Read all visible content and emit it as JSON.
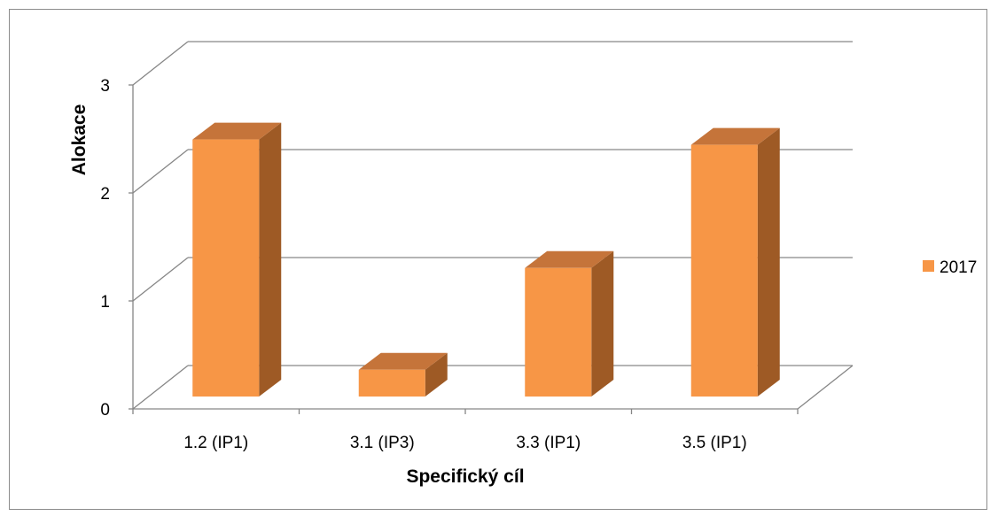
{
  "chart_data": {
    "type": "bar",
    "categories": [
      "1.2 (IP1)",
      "3.1 (IP3)",
      "3.3 (IP1)",
      "3.5 (IP1)"
    ],
    "series": [
      {
        "name": "2017",
        "values": [
          2.4,
          0.25,
          1.2,
          2.35
        ]
      }
    ],
    "xlabel": "Specifický cíl",
    "ylabel": "Alokace",
    "ylim": [
      0,
      3
    ],
    "yticks": [
      0,
      1,
      2,
      3
    ],
    "grid": true,
    "legend_position": "right",
    "style": "3d-column",
    "colors": {
      "bar_front": "#F79646",
      "bar_side": "#9E5A25",
      "bar_top": "#C5743A",
      "grid": "#868686"
    }
  }
}
